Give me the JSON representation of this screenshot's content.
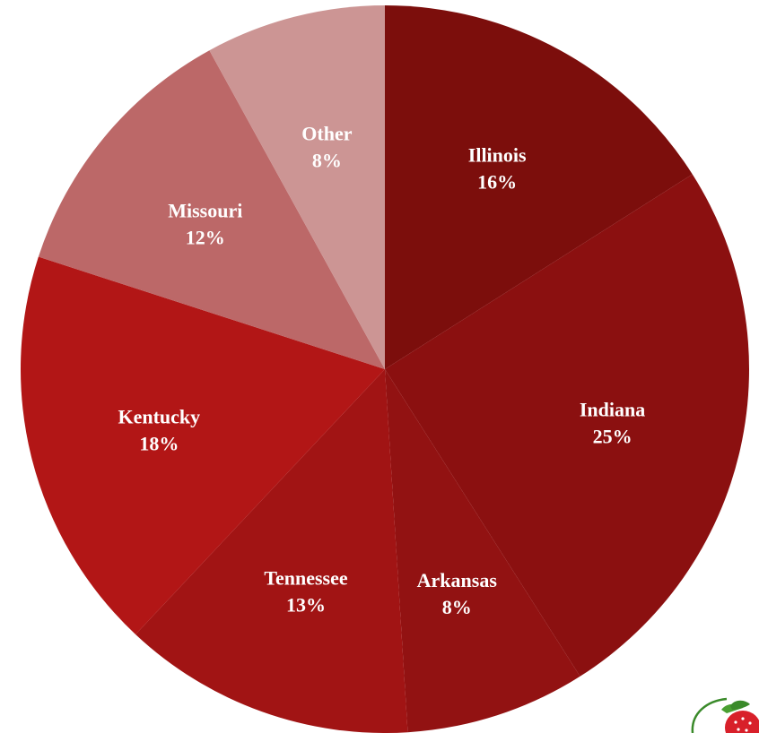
{
  "chart_data": {
    "type": "pie",
    "title": "",
    "slices": [
      {
        "label": "Illinois",
        "value": 16,
        "value_label": "16%",
        "color": "#7c0e0c"
      },
      {
        "label": "Indiana",
        "value": 25,
        "value_label": "25%",
        "color": "#8b1010"
      },
      {
        "label": "Arkansas",
        "value": 8,
        "value_label": "8%",
        "color": "#921212"
      },
      {
        "label": "Tennessee",
        "value": 13,
        "value_label": "13%",
        "color": "#a11414"
      },
      {
        "label": "Kentucky",
        "value": 18,
        "value_label": "18%",
        "color": "#b21616"
      },
      {
        "label": "Missouri",
        "value": 12,
        "value_label": "12%",
        "color": "#bc6868"
      },
      {
        "label": "Other",
        "value": 8,
        "value_label": "8%",
        "color": "#cc9594"
      }
    ],
    "start_angle_deg": 0,
    "direction": "clockwise",
    "legend": "none"
  },
  "logo": {
    "icon": "strawberry-icon"
  }
}
